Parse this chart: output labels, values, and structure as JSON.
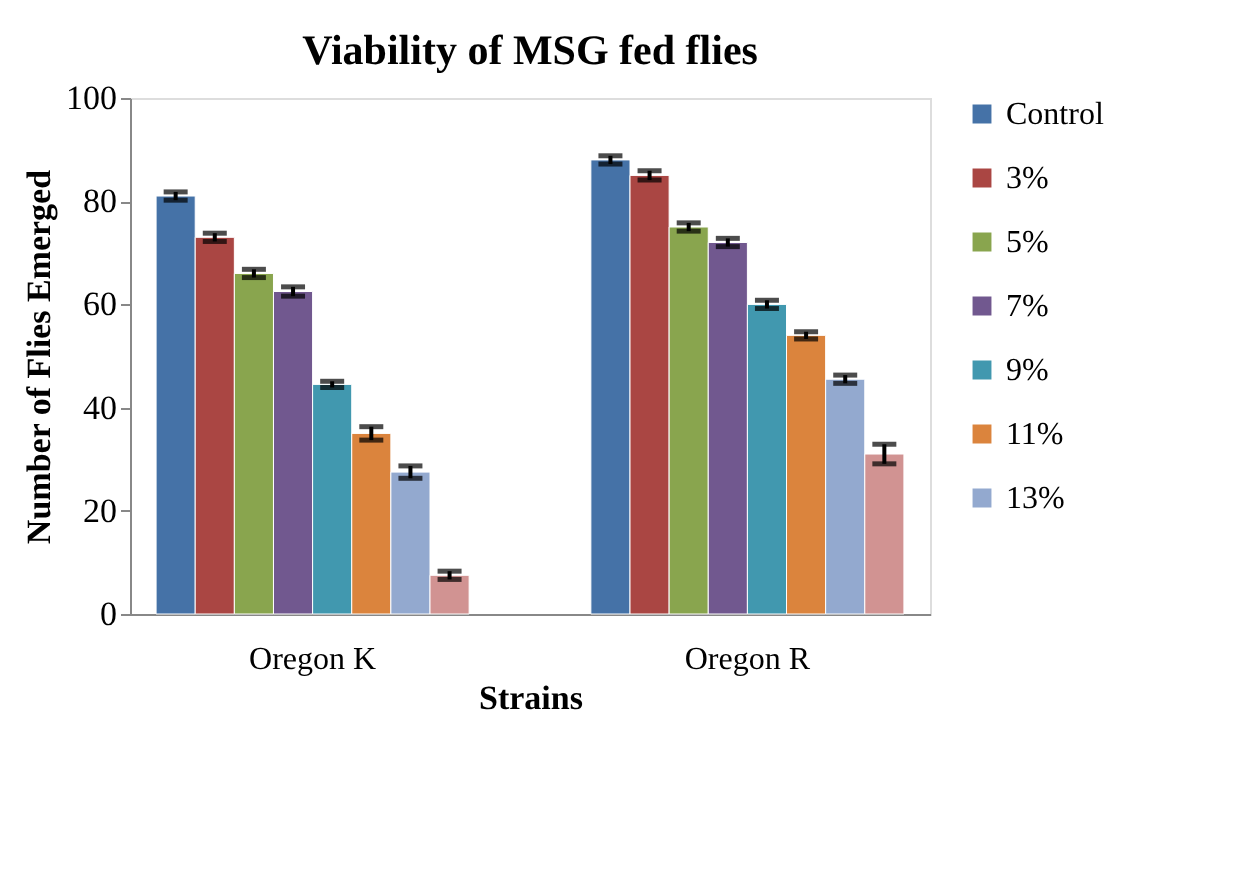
{
  "chart_data": {
    "type": "bar",
    "title": "Viability of MSG fed flies",
    "xlabel": "Strains",
    "ylabel": "Number of Flies Emerged",
    "categories": [
      "Oregon K",
      "Oregon R"
    ],
    "series": [
      {
        "name": "Control",
        "color": "#4572a7",
        "values": [
          81,
          88
        ],
        "errors": [
          0.8,
          0.8
        ]
      },
      {
        "name": "3%",
        "color": "#aa4643",
        "values": [
          73,
          85
        ],
        "errors": [
          0.8,
          0.9
        ]
      },
      {
        "name": "5%",
        "color": "#89a54e",
        "values": [
          66,
          75
        ],
        "errors": [
          0.8,
          0.8
        ]
      },
      {
        "name": "7%",
        "color": "#71588f",
        "values": [
          62.5,
          72
        ],
        "errors": [
          0.9,
          0.8
        ]
      },
      {
        "name": "9%",
        "color": "#4198af",
        "values": [
          44.5,
          60
        ],
        "errors": [
          0.6,
          0.8
        ]
      },
      {
        "name": "11%",
        "color": "#db843d",
        "values": [
          35,
          54
        ],
        "errors": [
          1.3,
          0.7
        ]
      },
      {
        "name": "13%",
        "color": "#93a9cf",
        "values": [
          27.5,
          45.5
        ],
        "errors": [
          1.2,
          0.8
        ]
      },
      {
        "color": "#d19392",
        "values": [
          7.5,
          31
        ],
        "errors": [
          0.8,
          1.9
        ]
      }
    ],
    "ylim": [
      0,
      100
    ],
    "yticks": [
      0,
      20,
      40,
      60,
      80,
      100
    ],
    "grid": false,
    "legend": "right"
  }
}
